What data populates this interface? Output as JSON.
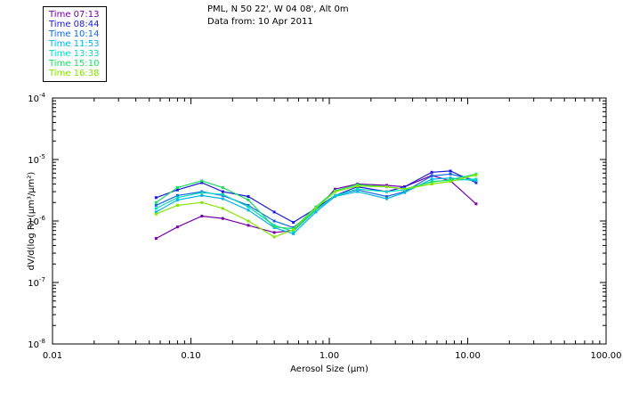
{
  "header": {
    "line1": "PML, N 50 22', W 04 08', Alt 0m",
    "line2": "Data from: 10 Apr 2011"
  },
  "chart_data": {
    "type": "line",
    "title": "PML, N 50 22', W 04 08', Alt 0m",
    "subtitle": "Data from: 10 Apr 2011",
    "xlabel": "Aerosol Size (μm)",
    "ylabel": "dV/d(log R) (µm³/µm²)",
    "xscale": "log",
    "yscale": "log",
    "xlim": [
      0.01,
      100
    ],
    "ylim": [
      1e-08,
      0.0001
    ],
    "x_ticks": [
      0.01,
      0.1,
      1,
      10,
      100
    ],
    "x_tick_labels": [
      "0.01",
      "0.10",
      "1.00",
      "10.00",
      "100.00"
    ],
    "y_ticks": [
      1e-08,
      1e-07,
      1e-06,
      1e-05,
      0.0001
    ],
    "y_tick_labels": [
      {
        "base": "10",
        "exp": "-8"
      },
      {
        "base": "10",
        "exp": "-7"
      },
      {
        "base": "10",
        "exp": "-6"
      },
      {
        "base": "10",
        "exp": "-5"
      },
      {
        "base": "10",
        "exp": "-4"
      }
    ],
    "legend_position": "top-left (outside plot)",
    "x": [
      0.056,
      0.08,
      0.12,
      0.17,
      0.26,
      0.4,
      0.55,
      0.8,
      1.1,
      1.6,
      2.6,
      3.5,
      5.5,
      7.5,
      11.5
    ],
    "series": [
      {
        "name": "Time 07:13",
        "color": "#7700aa",
        "values": [
          5.2e-07,
          8e-07,
          1.2e-06,
          1.1e-06,
          8.5e-07,
          6.5e-07,
          7e-07,
          1.5e-06,
          3.3e-06,
          4e-06,
          3.8e-06,
          3.6e-06,
          5.5e-06,
          4.5e-06,
          1.9e-06
        ]
      },
      {
        "name": "Time 08:44",
        "color": "#1a1adc",
        "values": [
          2.4e-06,
          3.2e-06,
          4.2e-06,
          3e-06,
          2.5e-06,
          1.4e-06,
          9.5e-07,
          1.6e-06,
          2.6e-06,
          3.6e-06,
          3e-06,
          3.6e-06,
          6.2e-06,
          6.5e-06,
          4.2e-06
        ]
      },
      {
        "name": "Time 10:14",
        "color": "#1466e6",
        "values": [
          1.8e-06,
          2.6e-06,
          3e-06,
          2.6e-06,
          1.8e-06,
          1e-06,
          7.8e-07,
          1.5e-06,
          2.6e-06,
          3.2e-06,
          2.5e-06,
          3e-06,
          5.4e-06,
          5.8e-06,
          4.6e-06
        ]
      },
      {
        "name": "Time 11:53",
        "color": "#00b4e6",
        "values": [
          1.4e-06,
          2.2e-06,
          2.6e-06,
          2.3e-06,
          1.5e-06,
          7.8e-07,
          6.2e-07,
          1.4e-06,
          2.5e-06,
          3e-06,
          2.3e-06,
          2.9e-06,
          4.8e-06,
          5e-06,
          4.5e-06
        ]
      },
      {
        "name": "Time 13:33",
        "color": "#00dcbe",
        "values": [
          1.6e-06,
          2.4e-06,
          2.9e-06,
          2.7e-06,
          1.7e-06,
          8.5e-07,
          6.8e-07,
          1.5e-06,
          2.6e-06,
          3.3e-06,
          3e-06,
          3.2e-06,
          4.4e-06,
          4.6e-06,
          4.8e-06
        ]
      },
      {
        "name": "Time 15:10",
        "color": "#1edc64",
        "values": [
          2e-06,
          3.5e-06,
          4.5e-06,
          3.5e-06,
          2.2e-06,
          8e-07,
          7.5e-07,
          1.7e-06,
          3.1e-06,
          3.9e-06,
          3.6e-06,
          3.3e-06,
          4.3e-06,
          4.7e-06,
          5.8e-06
        ]
      },
      {
        "name": "Time 16:38",
        "color": "#82e600",
        "values": [
          1.3e-06,
          1.8e-06,
          2e-06,
          1.6e-06,
          1e-06,
          5.5e-07,
          7.2e-07,
          1.6e-06,
          3e-06,
          3.7e-06,
          3.6e-06,
          3.3e-06,
          4e-06,
          4.4e-06,
          5.6e-06
        ]
      }
    ]
  }
}
